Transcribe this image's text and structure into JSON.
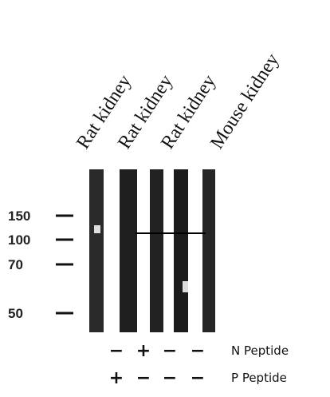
{
  "lanes": [
    "Rat kidney",
    "Rat kidney",
    "Rat kidney",
    "Mouse kidney"
  ],
  "markers": [
    150,
    100,
    70,
    50
  ],
  "peptides": [
    {
      "label": "N Peptide",
      "signs": [
        "−",
        "+",
        "−",
        "−"
      ]
    },
    {
      "label": "P Peptide",
      "signs": [
        "+",
        "−",
        "−",
        "−"
      ]
    }
  ]
}
